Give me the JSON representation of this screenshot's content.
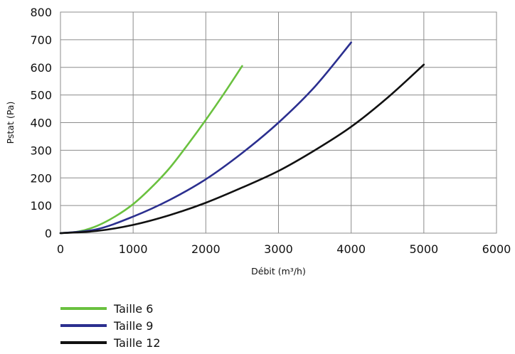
{
  "chart_data": {
    "type": "line",
    "title": "",
    "xlabel": "Débit (m³/h)",
    "ylabel": "Pstat (Pa)",
    "xlim": [
      0,
      6000
    ],
    "ylim": [
      0,
      800
    ],
    "xticks": [
      0,
      1000,
      2000,
      3000,
      4000,
      5000,
      6000
    ],
    "yticks": [
      0,
      100,
      200,
      300,
      400,
      500,
      600,
      700,
      800
    ],
    "xtick_labels": [
      "0",
      "1000",
      "2000",
      "3000",
      "4000",
      "5000",
      "6000"
    ],
    "ytick_labels": [
      "0",
      "100",
      "200",
      "300",
      "400",
      "500",
      "600",
      "700",
      "800"
    ],
    "grid": true,
    "legend_position": "bottom-left",
    "series": [
      {
        "name": "Taille 6",
        "color": "#6ac13f",
        "x": [
          0,
          250,
          500,
          750,
          1000,
          1250,
          1500,
          1750,
          2000,
          2250,
          2500
        ],
        "y": [
          0,
          6,
          26,
          60,
          105,
          165,
          235,
          320,
          410,
          505,
          605
        ]
      },
      {
        "name": "Taille 9",
        "color": "#2b2f8f",
        "x": [
          0,
          500,
          1000,
          1500,
          2000,
          2500,
          3000,
          3500,
          4000
        ],
        "y": [
          0,
          14,
          60,
          120,
          195,
          290,
          400,
          530,
          690
        ]
      },
      {
        "name": "Taille 12",
        "color": "#111111",
        "x": [
          0,
          500,
          1000,
          1500,
          2000,
          2500,
          3000,
          3500,
          4000,
          4500,
          5000
        ],
        "y": [
          0,
          8,
          30,
          65,
          110,
          165,
          225,
          300,
          385,
          490,
          610
        ]
      }
    ]
  }
}
